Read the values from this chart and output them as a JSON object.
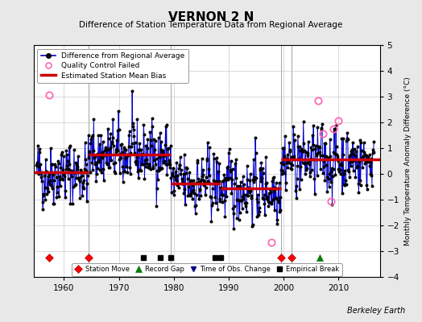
{
  "title": "VERNON 2 N",
  "subtitle": "Difference of Station Temperature Data from Regional Average",
  "ylabel": "Monthly Temperature Anomaly Difference (°C)",
  "background_color": "#e8e8e8",
  "plot_bg_color": "#ffffff",
  "ylim": [
    -4,
    5
  ],
  "xlim": [
    1954.5,
    2017.5
  ],
  "yticks": [
    -4,
    -3,
    -2,
    -1,
    0,
    1,
    2,
    3,
    4,
    5
  ],
  "xticks": [
    1960,
    1970,
    1980,
    1990,
    2000,
    2010
  ],
  "grid_color": "#cccccc",
  "line_color": "#0000cc",
  "dot_color": "#000000",
  "bias_color": "#cc0000",
  "bias_linewidth": 2.5,
  "qc_color": "#ff69b4",
  "station_move_times": [
    1957.3,
    1964.5,
    1999.5,
    2001.5
  ],
  "record_gap_times": [
    2006.5
  ],
  "obs_change_times": [],
  "empirical_break_times": [
    1974.5,
    1977.5,
    1979.5,
    1987.5,
    1988.5
  ],
  "bias_segments": [
    {
      "xstart": 1954.5,
      "xend": 1964.5,
      "yval": 0.05
    },
    {
      "xstart": 1964.5,
      "xend": 1979.5,
      "yval": 0.75
    },
    {
      "xstart": 1979.5,
      "xend": 1988.5,
      "yval": -0.38
    },
    {
      "xstart": 1988.5,
      "xend": 1999.5,
      "yval": -0.55
    },
    {
      "xstart": 1999.5,
      "xend": 2017.5,
      "yval": 0.55
    }
  ],
  "vert_lines": [
    1964.5,
    1979.5,
    1999.5,
    2001.5
  ],
  "marker_y": -3.25,
  "berkeley_earth_text": "Berkeley Earth",
  "segments_data": [
    {
      "start": 1955.0,
      "end": 1964.5,
      "bias": 0.05,
      "std": 0.6
    },
    {
      "start": 1964.5,
      "end": 1979.5,
      "bias": 0.75,
      "std": 0.6
    },
    {
      "start": 1979.5,
      "end": 1988.5,
      "bias": -0.38,
      "std": 0.6
    },
    {
      "start": 1988.5,
      "end": 1999.5,
      "bias": -0.55,
      "std": 0.6
    },
    {
      "start": 1999.5,
      "end": 2016.5,
      "bias": 0.55,
      "std": 0.6
    }
  ],
  "qc_times": [
    1957.3,
    1997.8,
    2006.3,
    2007.2,
    2008.6,
    2009.1,
    2009.9
  ],
  "qc_vals": [
    3.05,
    -2.65,
    2.85,
    1.55,
    -1.05,
    1.75,
    2.05
  ]
}
